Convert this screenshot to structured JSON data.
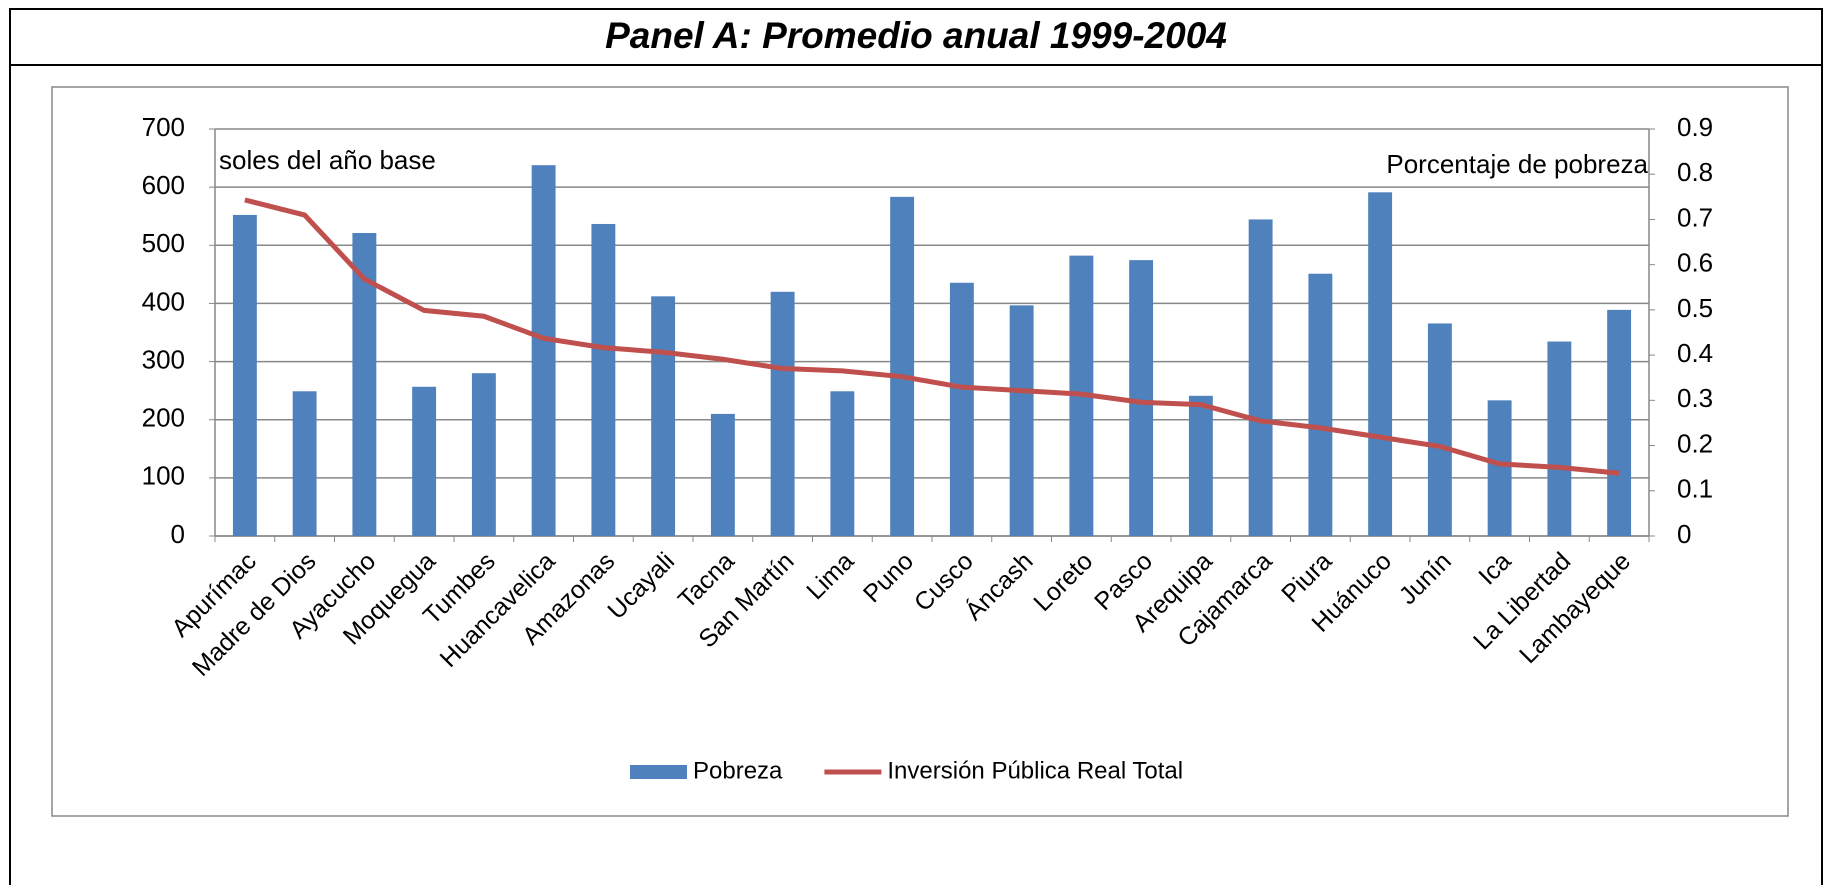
{
  "header": {
    "title": "Panel A: Promedio anual 1999-2004"
  },
  "chart_data": {
    "type": "bar-line",
    "categories": [
      "Apurímac",
      "Madre de Dios",
      "Ayacucho",
      "Moquegua",
      "Tumbes",
      "Huancavelica",
      "Amazonas",
      "Ucayali",
      "Tacna",
      "San Martín",
      "Lima",
      "Puno",
      "Cusco",
      "Áncash",
      "Loreto",
      "Pasco",
      "Arequipa",
      "Cajamarca",
      "Piura",
      "Huánuco",
      "Junín",
      "Ica",
      "La Libertad",
      "Lambayeque"
    ],
    "series": [
      {
        "name": "Pobreza",
        "type": "bar",
        "axis": "y2",
        "color": "#4f81bd",
        "values": [
          0.71,
          0.32,
          0.67,
          0.33,
          0.36,
          0.82,
          0.69,
          0.53,
          0.27,
          0.54,
          0.32,
          0.75,
          0.56,
          0.51,
          0.62,
          0.61,
          0.31,
          0.7,
          0.58,
          0.76,
          0.47,
          0.3,
          0.43,
          0.5
        ]
      },
      {
        "name": "Inversión Pública Real Total",
        "type": "line",
        "axis": "y",
        "color": "#c0504d",
        "values": [
          578,
          552,
          442,
          388,
          378,
          340,
          324,
          316,
          304,
          288,
          284,
          274,
          256,
          250,
          244,
          230,
          226,
          198,
          186,
          170,
          154,
          124,
          118,
          108
        ]
      }
    ],
    "ylim": [
      0,
      700
    ],
    "yticks": [
      0,
      100,
      200,
      300,
      400,
      500,
      600,
      700
    ],
    "y2lim": [
      0,
      0.9
    ],
    "y2ticks": [
      0,
      0.1,
      0.2,
      0.3,
      0.4,
      0.5,
      0.6,
      0.7,
      0.8,
      0.9
    ],
    "annotations": [
      "soles del año base",
      "Porcentaje de pobreza"
    ],
    "grid": true,
    "legend": "bottom"
  }
}
